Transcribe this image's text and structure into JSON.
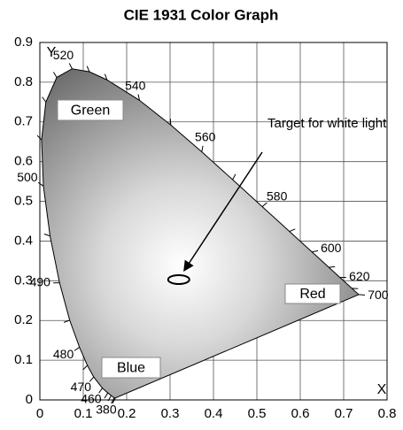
{
  "chart_data": {
    "type": "chromaticity",
    "title": "CIE 1931 Color Graph",
    "x_label": "X",
    "y_label": "Y",
    "xlim": [
      0,
      0.8
    ],
    "ylim": [
      0,
      0.9
    ],
    "xticks": [
      0,
      0.1,
      0.2,
      0.3,
      0.4,
      0.5,
      0.6,
      0.7,
      0.8
    ],
    "yticks": [
      0,
      0.1,
      0.2,
      0.3,
      0.4,
      0.5,
      0.6,
      0.7,
      0.8,
      0.9
    ],
    "grid": true,
    "locus": {
      "x": [
        0.1741,
        0.1714,
        0.1644,
        0.1566,
        0.144,
        0.1241,
        0.1096,
        0.0913,
        0.0687,
        0.0454,
        0.0235,
        0.0082,
        0.0039,
        0.0139,
        0.0389,
        0.0743,
        0.1142,
        0.1547,
        0.2296,
        0.3016,
        0.3731,
        0.4441,
        0.5125,
        0.5752,
        0.627,
        0.6658,
        0.6915,
        0.719,
        0.7347
      ],
      "y": [
        0.005,
        0.0051,
        0.0109,
        0.0177,
        0.0297,
        0.0578,
        0.0868,
        0.1327,
        0.2007,
        0.295,
        0.4127,
        0.5384,
        0.6548,
        0.7502,
        0.812,
        0.8338,
        0.8262,
        0.8059,
        0.7543,
        0.6923,
        0.6245,
        0.5547,
        0.4866,
        0.4242,
        0.3725,
        0.334,
        0.3083,
        0.2809,
        0.2653
      ],
      "labels": [
        "380",
        null,
        null,
        null,
        "460",
        "470",
        null,
        "480",
        null,
        "490",
        null,
        "500",
        null,
        null,
        null,
        "520",
        null,
        null,
        "540",
        null,
        "560",
        null,
        "580",
        null,
        "600",
        null,
        "620",
        null,
        "700"
      ]
    },
    "regions": [
      "Green",
      "Blue",
      "Red"
    ],
    "annotation": "Target for white light",
    "target": {
      "x": 0.32,
      "y": 0.303
    }
  }
}
